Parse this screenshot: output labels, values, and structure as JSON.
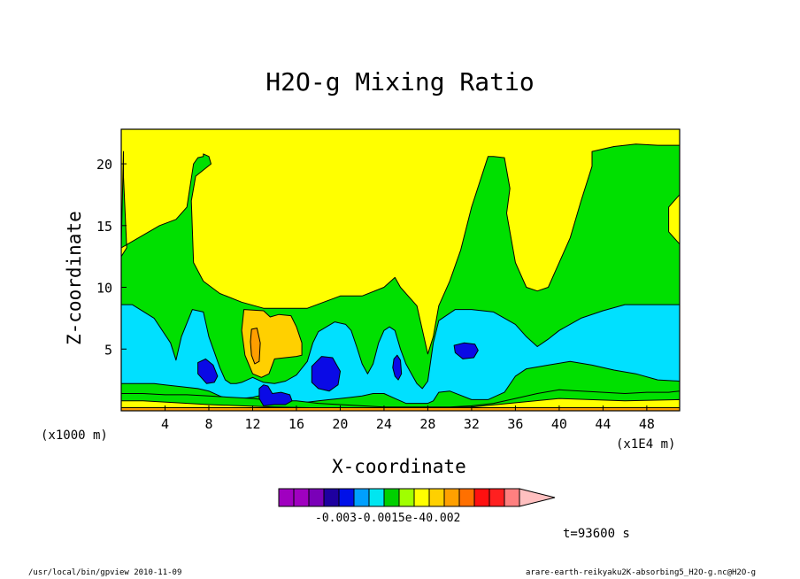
{
  "chart_data": {
    "type": "heatmap",
    "title": "H2O-g Mixing Ratio",
    "xlabel": "X-coordinate",
    "ylabel": "Z-coordinate",
    "x_unit_left": "(x1000 m)",
    "x_unit_right": "(x1E4 m)",
    "x_ticks": [
      4,
      8,
      12,
      16,
      20,
      24,
      28,
      32,
      36,
      40,
      44,
      48
    ],
    "y_ticks": [
      5,
      10,
      15,
      20
    ],
    "xlim": [
      0,
      51
    ],
    "ylim": [
      0,
      22.8
    ],
    "colorbar": {
      "colors": [
        "#a000c0",
        "#a000c0",
        "#7a00b8",
        "#1e00a0",
        "#0010e8",
        "#00a0ff",
        "#00e6f0",
        "#00d000",
        "#a0ff00",
        "#ffff00",
        "#ffd000",
        "#ffa000",
        "#ff7000",
        "#ff1010",
        "#ff2020",
        "#ff8080",
        "#ffc0c0"
      ],
      "tick_label_text": "-0.003-0.0015e-40.002"
    },
    "regions": [
      {
        "level": "yellow",
        "color": "#ffff00",
        "x": [
          0,
          51,
          51,
          0
        ],
        "z": [
          0,
          0,
          22.8,
          22.8
        ]
      },
      {
        "level": "green",
        "color": "#00e000",
        "x": [
          0,
          0,
          0.5,
          0.2,
          0.2,
          0,
          3.5,
          5,
          6,
          6.6,
          7,
          7.5,
          7.5,
          8,
          8.2,
          6.8,
          6.4,
          6.6,
          7.5,
          9,
          11,
          13,
          15,
          17,
          20,
          22,
          24,
          25,
          25.5,
          27,
          28,
          28.5,
          29,
          30,
          31,
          32,
          33.5,
          34,
          35,
          35.5,
          35.2,
          36,
          37,
          38,
          39,
          40,
          41,
          42,
          43,
          43,
          45,
          47,
          49,
          51,
          51,
          50,
          50,
          51,
          51,
          0
        ],
        "z": [
          0,
          12.5,
          13.2,
          19,
          21,
          13.2,
          15,
          15.5,
          16.5,
          20,
          20.5,
          20.6,
          20.8,
          20.6,
          20,
          19,
          17,
          12,
          10.5,
          9.5,
          8.8,
          8.3,
          8.3,
          8.3,
          9.3,
          9.3,
          10,
          10.8,
          10,
          8.5,
          4.6,
          6,
          8.5,
          10.5,
          13,
          16.5,
          20.6,
          20.6,
          20.5,
          18,
          16,
          12,
          10,
          9.7,
          10,
          12,
          14,
          17,
          19.8,
          21,
          21.4,
          21.6,
          21.5,
          21.5,
          17.5,
          16.5,
          14.5,
          13.5,
          0,
          0
        ]
      },
      {
        "level": "cyan",
        "color": "#00e0ff",
        "x": [
          0,
          0,
          1,
          3,
          4.5,
          5,
          5.5,
          6.5,
          7.5,
          8,
          9,
          9.5,
          10,
          10.5,
          11,
          12,
          13,
          14,
          15,
          16,
          17,
          17.5,
          18,
          19.5,
          20.5,
          21,
          21.5,
          22,
          22.5,
          23,
          23.5,
          24,
          24.5,
          25,
          25.5,
          26,
          26.5,
          27,
          27.5,
          28,
          28.5,
          29,
          30.5,
          32,
          34,
          36,
          37,
          38,
          39,
          40,
          42,
          44,
          46,
          48,
          50,
          51,
          51,
          49,
          47,
          45,
          43,
          41,
          39,
          37,
          36,
          35,
          33.5,
          32,
          30,
          29,
          28.5,
          28,
          27,
          26,
          25,
          24,
          23,
          22,
          21,
          20,
          19,
          18,
          17,
          16,
          15,
          14,
          13,
          12,
          11,
          10,
          9,
          8,
          7,
          6,
          5,
          4,
          3,
          1,
          0
        ],
        "z": [
          2.2,
          8.6,
          8.6,
          7.5,
          5.5,
          4.1,
          6,
          8.2,
          8,
          6,
          3.5,
          2.5,
          2.2,
          2.2,
          2.3,
          2.7,
          2.3,
          2.2,
          2.4,
          2.9,
          4,
          5.5,
          6.4,
          7.2,
          7,
          6.5,
          5.2,
          3.8,
          3,
          3.8,
          5.5,
          6.5,
          6.8,
          6.5,
          5,
          3.8,
          3,
          2.2,
          1.8,
          2.4,
          5.5,
          7.3,
          8.2,
          8.2,
          8,
          7,
          6,
          5.2,
          5.8,
          6.5,
          7.5,
          8.1,
          8.6,
          8.6,
          8.6,
          8.6,
          2.4,
          2.5,
          3,
          3.3,
          3.7,
          4,
          3.7,
          3.4,
          2.8,
          1.5,
          0.9,
          0.9,
          1.6,
          1.5,
          0.8,
          0.6,
          0.6,
          0.6,
          1,
          1.4,
          1.4,
          1.2,
          1.1,
          1,
          0.9,
          0.8,
          0.7,
          0.7,
          0.8,
          1.2,
          1.3,
          1.1,
          1,
          0.9,
          1.2,
          1.6,
          1.8,
          1.9,
          2,
          2.1,
          2.2,
          2.2,
          2.2
        ]
      },
      {
        "level": "green",
        "color": "#00e000",
        "x": [
          0,
          51,
          51,
          50,
          48,
          46,
          44,
          42,
          40,
          38,
          36,
          34,
          32,
          30,
          28,
          26,
          24,
          22,
          20,
          18,
          16,
          14,
          12,
          10,
          8,
          6,
          4,
          2,
          0
        ],
        "z": [
          0,
          0,
          1.6,
          1.5,
          1.5,
          1.4,
          1.5,
          1.6,
          1.7,
          1.4,
          1,
          0.6,
          0.4,
          0.3,
          0.3,
          0.3,
          0.3,
          0.4,
          0.5,
          0.6,
          0.8,
          0.8,
          1,
          1.1,
          1.2,
          1.3,
          1.3,
          1.4,
          1.4
        ]
      },
      {
        "level": "yellow",
        "color": "#ffff00",
        "x": [
          0,
          51,
          51,
          46,
          40,
          32,
          26,
          20,
          14,
          8,
          2,
          0
        ],
        "z": [
          0,
          0,
          0.9,
          0.8,
          1,
          0.3,
          0.2,
          0.2,
          0.3,
          0.5,
          0.8,
          0.8
        ]
      },
      {
        "level": "orange",
        "color": "#ff9e00",
        "x": [
          0,
          51,
          51,
          0
        ],
        "z": [
          0,
          0,
          0.25,
          0.25
        ]
      },
      {
        "level": "light-yellow",
        "color": "#ffd000",
        "x": [
          11.2,
          13,
          13.6,
          14.4,
          15.5,
          16,
          16.5,
          16.5,
          16,
          15,
          14,
          13.5,
          12.8,
          12,
          11.3,
          11
        ],
        "z": [
          8.2,
          8.1,
          7.6,
          7.8,
          7.7,
          6.8,
          5.5,
          4.5,
          4.4,
          4.3,
          4.2,
          3,
          2.7,
          3,
          4.5,
          6.5
        ]
      },
      {
        "level": "orange",
        "color": "#ff9e00",
        "x": [
          11.9,
          12.4,
          12.7,
          12.6,
          12.2,
          11.9,
          11.8
        ],
        "z": [
          6.6,
          6.7,
          5.5,
          4,
          3.8,
          4.5,
          5.6
        ]
      },
      {
        "level": "blue",
        "color": "#0a0ae6",
        "x": [
          7,
          7.7,
          8.4,
          8.8,
          8.5,
          7.8,
          7
        ],
        "z": [
          3.9,
          4.2,
          3.7,
          2.8,
          2.3,
          2.2,
          3
        ]
      },
      {
        "level": "blue",
        "color": "#0a0ae6",
        "x": [
          17.4,
          18.3,
          19.3,
          20,
          19.8,
          19,
          18,
          17.4,
          17.4
        ],
        "z": [
          3.6,
          4.4,
          4.3,
          3.2,
          2.1,
          1.6,
          1.8,
          2.3,
          3
        ]
      },
      {
        "level": "blue",
        "color": "#0a0ae6",
        "x": [
          12.6,
          13,
          13.4,
          13.8,
          14.6,
          15.4,
          15.6,
          15,
          14,
          13,
          12.6
        ],
        "z": [
          1.8,
          2.1,
          2,
          1.4,
          1.5,
          1.3,
          0.8,
          0.5,
          0.5,
          0.4,
          1
        ]
      },
      {
        "level": "blue",
        "color": "#0a0ae6",
        "x": [
          24.9,
          25.2,
          25.5,
          25.6,
          25.3,
          25,
          24.8
        ],
        "z": [
          4.2,
          4.5,
          4.1,
          3,
          2.5,
          2.8,
          3.5
        ]
      },
      {
        "level": "blue",
        "color": "#0a0ae6",
        "x": [
          30.4,
          31.3,
          32.3,
          32.6,
          32.2,
          31.2,
          30.5
        ],
        "z": [
          5.3,
          5.5,
          5.4,
          4.9,
          4.3,
          4.2,
          4.7
        ]
      }
    ]
  },
  "time_label": "t=93600 s",
  "footer_left": "/usr/local/bin/gpview  2010-11-09",
  "footer_right": "arare-earth-reikyaku2K-absorbing5_H2O-g.nc@H2O-g"
}
